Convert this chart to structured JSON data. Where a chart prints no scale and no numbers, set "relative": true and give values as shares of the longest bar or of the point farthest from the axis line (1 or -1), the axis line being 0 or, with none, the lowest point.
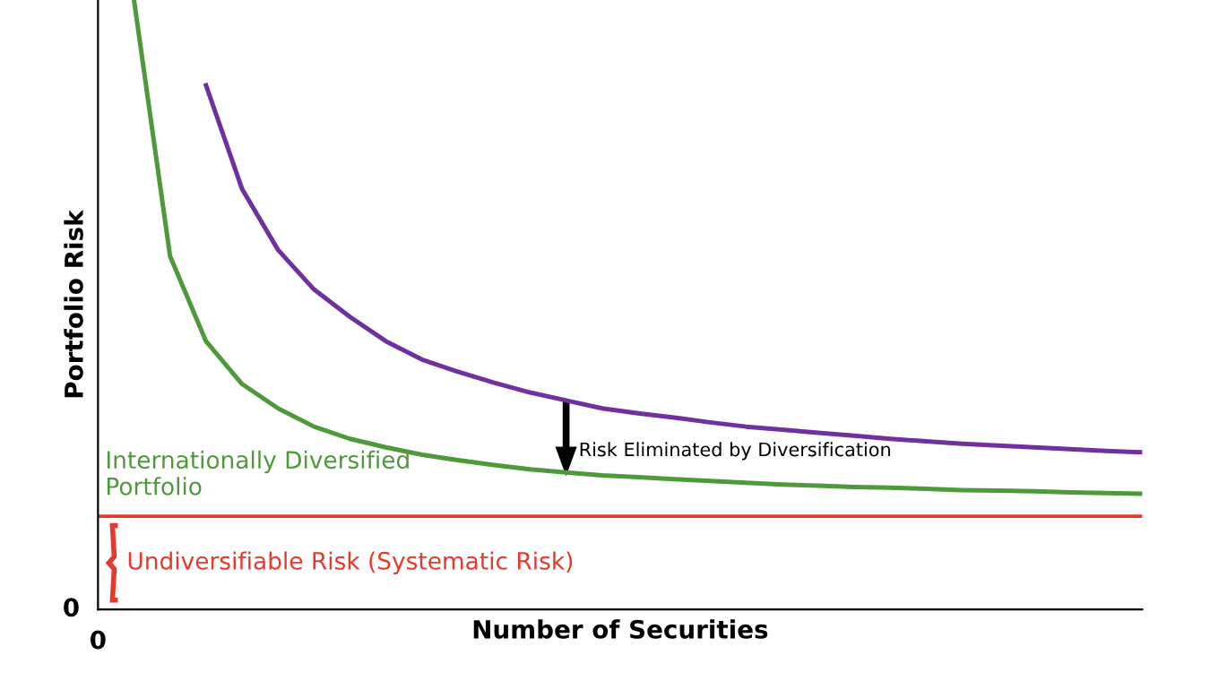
{
  "chart_data": {
    "type": "line",
    "relative": true,
    "xlabel": "Number of Securities",
    "ylabel": "Portfolio Risk",
    "categories": [
      null,
      null,
      null,
      null,
      null,
      null,
      null,
      null,
      null,
      null,
      null,
      null,
      null,
      null,
      null,
      null,
      null,
      null,
      null,
      null,
      null,
      null,
      null,
      null,
      null,
      null,
      null,
      null,
      null,
      null
    ],
    "series": [
      {
        "color": "#7030a0",
        "values": [
          null,
          null,
          null,
          0.86,
          0.69,
          0.59,
          0.525,
          0.48,
          0.44,
          0.41,
          0.39,
          0.372,
          0.356,
          0.343,
          0.33,
          0.322,
          0.315,
          0.307,
          0.3,
          0.295,
          0.29,
          0.285,
          0.28,
          0.276,
          0.272,
          0.269,
          0.266,
          0.263,
          0.26,
          0.258
        ]
      },
      {
        "name": "Internationally Diversified\nPortfolio",
        "color": "#4e9a3a",
        "values": [
          null,
          1.0,
          0.58,
          0.44,
          0.37,
          0.33,
          0.3,
          0.28,
          0.266,
          0.254,
          0.245,
          0.237,
          0.23,
          0.225,
          0.22,
          0.217,
          0.214,
          0.211,
          0.208,
          0.205,
          0.203,
          0.201,
          0.2,
          0.198,
          0.196,
          0.195,
          0.194,
          0.192,
          0.191,
          0.19
        ]
      }
    ],
    "ref_lines": [
      {
        "axis": "y",
        "value": 0.153,
        "label": "Undiversifiable Risk (Systematic Risk)",
        "color": "#e8382b"
      }
    ],
    "annotations": [
      "0",
      "0",
      "Risk Eliminated by Diversification"
    ],
    "legend": false,
    "line_style": "solid",
    "marker": "none"
  }
}
